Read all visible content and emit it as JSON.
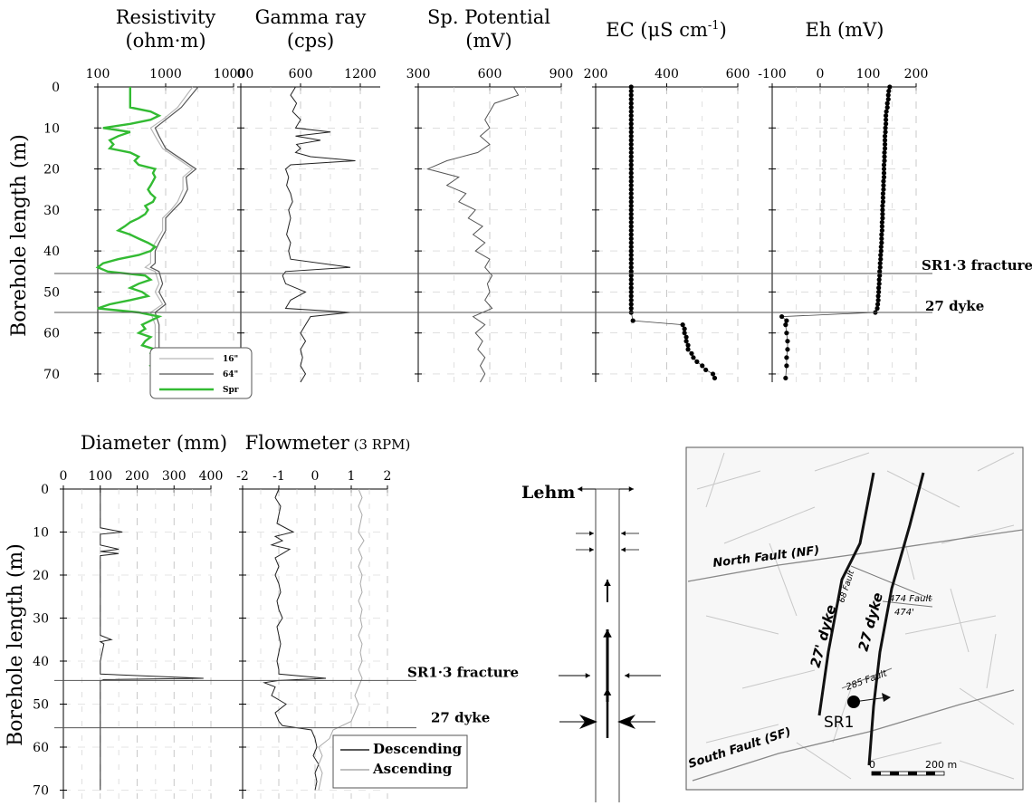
{
  "chart_data": [
    {
      "type": "line",
      "title_line1": "Resistivity",
      "title_line2": "(ohm·m)",
      "x_scale": "log",
      "xlim": [
        100,
        10000
      ],
      "x_ticks": [
        "100",
        "1000",
        "10000"
      ],
      "ylim": [
        0,
        72
      ],
      "legend": [
        "16\"",
        "64\"",
        "Spr"
      ],
      "series_colors": {
        "16in": "#b8b8b8",
        "64in": "#555555",
        "spr": "#33bb33"
      },
      "series": [
        {
          "name": "16\"",
          "depth": [
            0,
            5,
            8,
            10,
            12,
            15,
            20,
            22,
            25,
            28,
            30,
            32,
            35,
            38,
            40,
            43,
            44,
            45,
            48,
            50,
            53,
            55,
            58,
            60,
            63,
            65,
            68,
            70,
            72
          ],
          "values": [
            2500,
            1500,
            900,
            600,
            700,
            900,
            2500,
            1800,
            1800,
            1500,
            1200,
            900,
            900,
            700,
            600,
            600,
            500,
            700,
            800,
            700,
            900,
            600,
            700,
            700,
            700,
            700,
            750,
            800,
            700
          ]
        },
        {
          "name": "64\"",
          "depth": [
            0,
            5,
            8,
            10,
            12,
            15,
            20,
            22,
            25,
            28,
            30,
            32,
            35,
            38,
            40,
            43,
            44,
            45,
            48,
            50,
            53,
            55,
            58,
            60,
            63,
            65,
            68,
            70,
            72
          ],
          "values": [
            3000,
            1700,
            1000,
            700,
            800,
            1000,
            2800,
            2000,
            2100,
            1700,
            1300,
            1000,
            1000,
            800,
            700,
            700,
            600,
            800,
            900,
            800,
            1000,
            700,
            800,
            800,
            800,
            800,
            850,
            900,
            800
          ]
        },
        {
          "name": "Spr",
          "depth": [
            0,
            1,
            2,
            3,
            4,
            5,
            6,
            7,
            8,
            9,
            10,
            11,
            12,
            13,
            14,
            15,
            16,
            17,
            18,
            19,
            20,
            21,
            22,
            23,
            24,
            25,
            26,
            27,
            28,
            29,
            30,
            31,
            32,
            33,
            34,
            35,
            36,
            37,
            38,
            39,
            40,
            41,
            42,
            43,
            44,
            45,
            46,
            47,
            48,
            49,
            50,
            51,
            52,
            53,
            54,
            55,
            56,
            57,
            58,
            59,
            60,
            61,
            62,
            63,
            64,
            65,
            66,
            67,
            68,
            69,
            70,
            71,
            72
          ],
          "values": [
            300,
            300,
            300,
            300,
            300,
            300,
            600,
            800,
            600,
            300,
            120,
            300,
            200,
            150,
            170,
            150,
            300,
            400,
            350,
            400,
            700,
            650,
            700,
            650,
            600,
            550,
            600,
            700,
            650,
            500,
            550,
            500,
            400,
            300,
            250,
            200,
            300,
            400,
            550,
            700,
            600,
            400,
            200,
            120,
            100,
            140,
            500,
            600,
            400,
            300,
            450,
            550,
            300,
            150,
            100,
            400,
            800,
            600,
            450,
            500,
            400,
            600,
            500,
            450,
            700,
            600,
            650,
            800,
            600,
            700,
            650,
            700,
            600
          ]
        }
      ]
    },
    {
      "type": "line",
      "title_line1": "Gamma  ray",
      "title_line2": "(cps)",
      "xlim": [
        0,
        1400
      ],
      "x_ticks": [
        "0",
        "600",
        "1200"
      ],
      "ylim": [
        0,
        72
      ],
      "series": [
        {
          "depth": [
            0,
            2,
            4,
            6,
            8,
            10,
            11,
            12,
            13,
            14,
            15,
            16,
            17,
            18,
            19,
            20,
            22,
            24,
            26,
            28,
            30,
            32,
            34,
            36,
            38,
            40,
            42,
            44,
            45,
            46,
            48,
            50,
            52,
            54,
            55,
            56,
            58,
            60,
            62,
            64,
            66,
            68,
            70,
            72
          ],
          "values": [
            550,
            500,
            560,
            520,
            600,
            550,
            900,
            550,
            800,
            560,
            600,
            550,
            700,
            1150,
            500,
            450,
            480,
            460,
            500,
            520,
            480,
            500,
            480,
            460,
            500,
            480,
            500,
            1100,
            450,
            420,
            450,
            650,
            500,
            450,
            1100,
            700,
            650,
            600,
            650,
            600,
            620,
            600,
            650,
            600
          ]
        }
      ]
    },
    {
      "type": "line",
      "title_line1": "Sp. Potential",
      "title_line2": "(mV)",
      "xlim": [
        300,
        900
      ],
      "x_ticks": [
        "300",
        "600",
        "900"
      ],
      "ylim": [
        0,
        72
      ],
      "series": [
        {
          "depth": [
            0,
            2,
            4,
            6,
            8,
            10,
            12,
            14,
            16,
            18,
            20,
            22,
            24,
            26,
            28,
            30,
            32,
            34,
            36,
            38,
            40,
            42,
            44,
            46,
            48,
            50,
            52,
            54,
            56,
            58,
            60,
            62,
            64,
            66,
            68,
            70,
            72
          ],
          "values": [
            700,
            720,
            620,
            600,
            580,
            600,
            560,
            600,
            550,
            420,
            340,
            470,
            420,
            500,
            470,
            540,
            510,
            570,
            530,
            580,
            540,
            600,
            580,
            610,
            590,
            600,
            580,
            610,
            530,
            580,
            540,
            570,
            550,
            580,
            560,
            580,
            560
          ]
        }
      ]
    },
    {
      "type": "scatter",
      "title_main": "EC (μS cm",
      "title_sup": "-1",
      "title_end": ")",
      "xlim": [
        200,
        600
      ],
      "x_ticks": [
        "200",
        "400",
        "600"
      ],
      "ylim": [
        0,
        72
      ],
      "series": [
        {
          "depth": [
            0,
            1,
            2,
            3,
            4,
            5,
            6,
            7,
            8,
            9,
            10,
            11,
            12,
            13,
            14,
            15,
            16,
            17,
            18,
            19,
            20,
            21,
            22,
            23,
            24,
            25,
            26,
            27,
            28,
            29,
            30,
            31,
            32,
            33,
            34,
            35,
            36,
            37,
            38,
            39,
            40,
            41,
            42,
            43,
            44,
            45,
            46,
            47,
            48,
            49,
            50,
            51,
            52,
            53,
            54,
            55,
            57,
            58,
            59,
            60,
            61,
            62,
            63,
            64,
            65,
            66,
            67,
            68,
            69,
            70,
            71
          ],
          "values": [
            300,
            300,
            300,
            300,
            300,
            300,
            300,
            300,
            300,
            300,
            300,
            300,
            300,
            300,
            300,
            300,
            300,
            300,
            300,
            300,
            300,
            300,
            300,
            300,
            300,
            300,
            300,
            300,
            300,
            300,
            300,
            300,
            300,
            300,
            300,
            300,
            300,
            300,
            300,
            300,
            300,
            300,
            300,
            300,
            300,
            300,
            300,
            300,
            300,
            300,
            300,
            300,
            300,
            300,
            300,
            300,
            305,
            445,
            450,
            450,
            455,
            455,
            460,
            460,
            470,
            475,
            485,
            500,
            510,
            530,
            535
          ]
        }
      ]
    },
    {
      "type": "scatter",
      "title_line1": "Eh (mV)",
      "xlim": [
        -100,
        200
      ],
      "x_ticks": [
        "-100",
        "0",
        "100",
        "200"
      ],
      "ylim": [
        0,
        72
      ],
      "series": [
        {
          "depth": [
            0,
            1,
            2,
            3,
            4,
            5,
            6,
            7,
            8,
            9,
            10,
            11,
            12,
            13,
            14,
            15,
            16,
            17,
            18,
            19,
            20,
            21,
            22,
            23,
            24,
            25,
            26,
            27,
            28,
            29,
            30,
            31,
            32,
            33,
            34,
            35,
            36,
            37,
            38,
            39,
            40,
            41,
            42,
            43,
            44,
            45,
            46,
            47,
            48,
            49,
            50,
            51,
            52,
            53,
            54,
            55,
            56,
            57,
            58,
            60,
            62,
            64,
            66,
            68,
            71
          ],
          "values": [
            145,
            143,
            142,
            142,
            140,
            140,
            138,
            137,
            137,
            137,
            136,
            136,
            135,
            135,
            135,
            135,
            134,
            134,
            134,
            133,
            133,
            133,
            133,
            132,
            132,
            132,
            131,
            131,
            131,
            130,
            130,
            130,
            130,
            129,
            129,
            129,
            128,
            128,
            128,
            127,
            127,
            126,
            126,
            125,
            125,
            124,
            124,
            123,
            123,
            122,
            122,
            121,
            121,
            120,
            119,
            115,
            -80,
            -70,
            -72,
            -70,
            -68,
            -68,
            -70,
            -70,
            -72
          ]
        }
      ]
    },
    {
      "type": "line",
      "title_line1": "Diameter (mm)",
      "xlim": [
        0,
        400
      ],
      "x_ticks": [
        "0",
        "100",
        "200",
        "300",
        "400"
      ],
      "ylim": [
        0,
        72
      ],
      "series": [
        {
          "depth": [
            0,
            5,
            9,
            10,
            10.5,
            11,
            13,
            14,
            14.5,
            15,
            15.5,
            16,
            20,
            25,
            30,
            34,
            35,
            35.5,
            36,
            40,
            43,
            44,
            44.3,
            44.6,
            45,
            46,
            50,
            55,
            55.5,
            56,
            60,
            65,
            70
          ],
          "values": [
            100,
            100,
            100,
            160,
            100,
            100,
            100,
            150,
            100,
            150,
            100,
            100,
            100,
            100,
            100,
            100,
            130,
            100,
            110,
            100,
            100,
            380,
            110,
            100,
            100,
            100,
            100,
            100,
            100,
            100,
            100,
            100,
            100
          ]
        }
      ]
    },
    {
      "type": "line",
      "title_main": "Flowmeter",
      "title_small": " (3 RPM)",
      "xlim": [
        -2,
        2
      ],
      "x_ticks": [
        "-2",
        "-1",
        "0",
        "1",
        "2"
      ],
      "ylim": [
        0,
        72
      ],
      "legend": [
        "Descending",
        "Ascending"
      ],
      "series": [
        {
          "name": "Descending",
          "depth": [
            0,
            2,
            4,
            6,
            8,
            10,
            11,
            12,
            13,
            14,
            15,
            16,
            18,
            20,
            22,
            24,
            26,
            28,
            30,
            32,
            34,
            36,
            38,
            40,
            42,
            43,
            44,
            44.5,
            45,
            46,
            48,
            50,
            52,
            54,
            55,
            56,
            58,
            60,
            62,
            64,
            66,
            68,
            70
          ],
          "values": [
            -1,
            -1.1,
            -0.95,
            -1,
            -1.05,
            -0.6,
            -1.1,
            -0.9,
            -1.2,
            -0.7,
            -0.9,
            -1.1,
            -1,
            -1.1,
            -1,
            -0.95,
            -1.05,
            -1,
            -0.9,
            -1.05,
            -1,
            -0.95,
            -1,
            -1.05,
            -1,
            -1,
            0.3,
            -1,
            -1.4,
            -1.1,
            -1.2,
            -0.8,
            -1.1,
            -1,
            -0.9,
            -0.1,
            0,
            0.05,
            -0.05,
            0.1,
            0,
            0.05,
            0
          ]
        },
        {
          "name": "Ascending",
          "depth": [
            0,
            2,
            4,
            6,
            8,
            10,
            12,
            14,
            16,
            18,
            20,
            22,
            24,
            26,
            28,
            30,
            32,
            34,
            36,
            38,
            40,
            42,
            44,
            46,
            48,
            50,
            52,
            54,
            56,
            58,
            60,
            62,
            64,
            66,
            68,
            70
          ],
          "values": [
            1.2,
            1.3,
            1.2,
            1.3,
            1.25,
            1.2,
            1.35,
            1.2,
            1.3,
            1.2,
            1.3,
            1.25,
            1.3,
            1.2,
            1.3,
            1.25,
            1.3,
            1.2,
            1.3,
            1.25,
            1.3,
            1.2,
            1.3,
            1.2,
            1.1,
            1.2,
            1.1,
            1,
            0.5,
            0.4,
            0.1,
            0.2,
            0.1,
            0.2,
            0.15,
            0.1
          ]
        }
      ]
    }
  ],
  "top_panels": {
    "ylabel": "Borehole  length (m)",
    "y_ticks": [
      "0",
      "10",
      "20",
      "30",
      "40",
      "50",
      "60",
      "70"
    ],
    "markers": [
      {
        "depth": 45.5,
        "label": "SR1·3 fracture"
      },
      {
        "depth": 55,
        "label": "27 dyke"
      }
    ]
  },
  "bottom_panels": {
    "ylabel": "Borehole  length (m)",
    "y_ticks": [
      "0",
      "10",
      "20",
      "30",
      "40",
      "50",
      "60",
      "70"
    ],
    "markers": [
      {
        "depth": 44.5,
        "label": "SR1·3 fracture"
      },
      {
        "depth": 55.5,
        "label": "27 dyke"
      }
    ]
  },
  "schematic": {
    "label": "Lehm",
    "arrow_color": "#000000"
  },
  "map": {
    "labels": {
      "north_fault": "North Fault (NF)",
      "south_fault": "South Fault (SF)",
      "dyke_27p": "27' dyke",
      "dyke_27": "27 dyke",
      "fault_68": "68 Fault",
      "fault_474": "474 Fault",
      "fault_474p": "474'",
      "fault_285": "285 Fault",
      "borehole": "SR1",
      "scale_0": "0",
      "scale_200": "200 m"
    },
    "colors": {
      "background": "#f7f7f7",
      "lineaments": "#c8c8c8",
      "border": "#555555"
    }
  }
}
